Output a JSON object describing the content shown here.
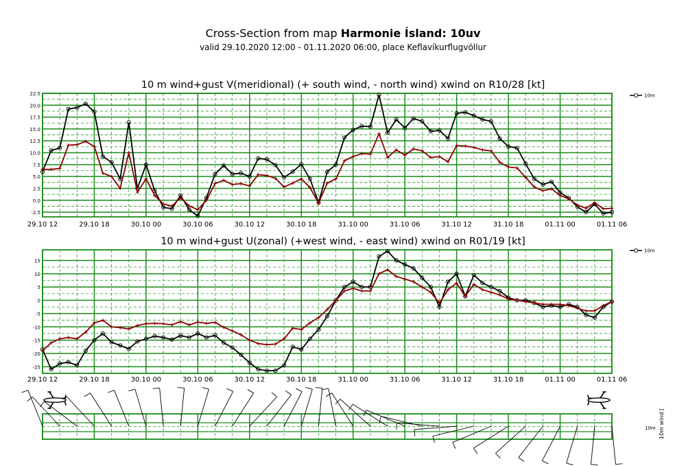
{
  "header": {
    "title_prefix": "Cross-Section from map ",
    "title_bold": "Harmonie Ísland: 10uv",
    "subtitle": "valid 29.10.2020 12:00 - 01.11.2020 06:00, place Keflavíkurflugvöllur"
  },
  "x_tick_labels": [
    "29.10 12",
    "29.10 18",
    "30.10 00",
    "30.10 06",
    "30.10 12",
    "30.10 18",
    "31.10 00",
    "31.10 06",
    "31.10 12",
    "31.10 18",
    "01.11 00",
    "01.11 06"
  ],
  "legend_label": "10m",
  "colors": {
    "wind": "#000000",
    "gust": "#8b0000",
    "grid": "#1a8c1a",
    "grid_dash": "#2e9b2e"
  },
  "chart_data": [
    {
      "type": "line",
      "title": "10 m wind+gust V(meridional) (+ south wind, - north wind) xwind on R10/28 [kt]",
      "x_unit": "hours from 29.10.2020 12:00",
      "x": [
        0,
        1,
        2,
        3,
        4,
        5,
        6,
        7,
        8,
        9,
        10,
        11,
        12,
        13,
        14,
        15,
        16,
        17,
        18,
        19,
        20,
        21,
        22,
        23,
        24,
        25,
        26,
        27,
        28,
        29,
        30,
        31,
        32,
        33,
        34,
        35,
        36,
        37,
        38,
        39,
        40,
        41,
        42,
        43,
        44,
        45,
        46,
        47,
        48,
        49,
        50,
        51,
        52,
        53,
        54,
        55,
        56,
        57,
        58,
        59,
        60,
        61,
        62,
        63,
        64,
        65,
        66
      ],
      "ylim": [
        -3.5,
        22.5
      ],
      "yticks": [
        -2.5,
        0.0,
        2.5,
        5.0,
        7.5,
        10.0,
        12.5,
        15.0,
        17.5,
        20.0,
        22.5
      ],
      "ytick_labels": [
        "-2.5",
        "0.0",
        "2.5",
        "5.0",
        "7.5",
        "10.0",
        "12.5",
        "15.0",
        "17.5",
        "20.0",
        "22.5"
      ],
      "series": [
        {
          "name": "10m",
          "role": "wind",
          "values": [
            6.0,
            10.5,
            11.0,
            19.2,
            19.5,
            20.3,
            18.6,
            9.2,
            8.0,
            4.5,
            16.4,
            2.5,
            7.5,
            2.0,
            -1.5,
            -1.8,
            1.0,
            -2.0,
            -3.3,
            0.5,
            5.5,
            7.3,
            5.5,
            5.7,
            5.0,
            8.8,
            8.6,
            7.4,
            4.8,
            6.0,
            7.6,
            4.5,
            -0.5,
            6.0,
            7.5,
            13.2,
            14.8,
            15.6,
            15.5,
            22.2,
            14.2,
            17.0,
            15.2,
            17.2,
            16.6,
            14.5,
            14.7,
            13.0,
            18.3,
            18.5,
            17.8,
            17.0,
            16.6,
            13.0,
            11.3,
            11.0,
            7.7,
            4.5,
            3.3,
            3.9,
            1.6,
            0.5,
            -1.4,
            -2.5,
            -0.8,
            -2.8,
            -2.5
          ]
        },
        {
          "name": "",
          "role": "gust",
          "values": [
            6.5,
            6.5,
            6.7,
            11.6,
            11.7,
            12.4,
            11.3,
            5.7,
            5.0,
            2.5,
            10.0,
            1.7,
            4.5,
            1.0,
            -0.8,
            -1.2,
            0.5,
            -1.2,
            -2.0,
            0.0,
            3.5,
            4.2,
            3.3,
            3.5,
            3.0,
            5.4,
            5.2,
            4.6,
            2.8,
            3.6,
            4.5,
            2.7,
            -0.6,
            3.6,
            4.5,
            8.3,
            9.2,
            9.8,
            9.7,
            14.0,
            9.0,
            10.6,
            9.5,
            10.8,
            10.4,
            9.0,
            9.2,
            8.1,
            11.5,
            11.4,
            11.1,
            10.6,
            10.4,
            8.0,
            7.0,
            6.8,
            4.8,
            2.8,
            2.0,
            2.4,
            1.0,
            0.3,
            -1.0,
            -1.7,
            -0.5,
            -1.8,
            -1.7
          ]
        }
      ]
    },
    {
      "type": "line",
      "title": "10 m wind+gust U(zonal) (+west wind, - east wind) xwind on R01/19 [kt]",
      "x_unit": "hours from 29.10.2020 12:00",
      "x": [
        0,
        1,
        2,
        3,
        4,
        5,
        6,
        7,
        8,
        9,
        10,
        11,
        12,
        13,
        14,
        15,
        16,
        17,
        18,
        19,
        20,
        21,
        22,
        23,
        24,
        25,
        26,
        27,
        28,
        29,
        30,
        31,
        32,
        33,
        34,
        35,
        36,
        37,
        38,
        39,
        40,
        41,
        42,
        43,
        44,
        45,
        46,
        47,
        48,
        49,
        50,
        51,
        52,
        53,
        54,
        55,
        56,
        57,
        58,
        59,
        60,
        61,
        62,
        63,
        64,
        65,
        66
      ],
      "ylim": [
        -27.5,
        19
      ],
      "yticks": [
        -25,
        -20,
        -15,
        -10,
        -5,
        0,
        5,
        10,
        15
      ],
      "ytick_labels": [
        "-25",
        "-20",
        "-15",
        "-10",
        "-5",
        "0",
        "5",
        "10",
        "15"
      ],
      "series": [
        {
          "name": "10m",
          "role": "wind",
          "values": [
            -18.5,
            -26.0,
            -23.8,
            -23.3,
            -24.5,
            -19.0,
            -15.0,
            -12.5,
            -15.8,
            -17.0,
            -18.3,
            -15.5,
            -14.5,
            -13.5,
            -14.0,
            -14.8,
            -13.3,
            -14.0,
            -12.5,
            -14.0,
            -13.2,
            -16.0,
            -17.8,
            -20.5,
            -23.5,
            -26.0,
            -26.5,
            -26.5,
            -24.5,
            -17.5,
            -18.5,
            -14.5,
            -11.0,
            -6.0,
            0.0,
            5.0,
            7.0,
            5.0,
            5.0,
            16.5,
            18.5,
            15.0,
            13.5,
            12.0,
            8.5,
            5.0,
            -2.5,
            7.0,
            10.0,
            1.5,
            9.5,
            6.5,
            5.0,
            3.5,
            1.0,
            0.0,
            0.0,
            -1.0,
            -2.5,
            -2.0,
            -2.5,
            -1.5,
            -2.5,
            -5.5,
            -6.5,
            -2.5,
            -0.5
          ]
        },
        {
          "name": "",
          "role": "gust",
          "values": [
            -19.0,
            -16.0,
            -14.5,
            -14.0,
            -14.5,
            -12.0,
            -8.5,
            -7.5,
            -10.0,
            -10.3,
            -10.8,
            -9.5,
            -8.8,
            -8.7,
            -8.8,
            -9.3,
            -8.0,
            -9.3,
            -8.2,
            -8.7,
            -8.3,
            -10.2,
            -11.5,
            -13.0,
            -15.0,
            -16.3,
            -16.7,
            -16.5,
            -14.5,
            -10.5,
            -11.0,
            -8.5,
            -6.5,
            -3.5,
            0.0,
            3.5,
            4.5,
            3.5,
            3.5,
            10.0,
            11.5,
            9.0,
            8.0,
            7.0,
            5.0,
            3.0,
            -1.0,
            4.0,
            6.5,
            1.5,
            6.0,
            4.0,
            3.0,
            2.0,
            0.5,
            0.0,
            -0.5,
            -1.0,
            -1.5,
            -1.5,
            -1.5,
            -2.0,
            -3.0,
            -4.0,
            -4.0,
            -2.0,
            -0.5
          ]
        }
      ]
    }
  ],
  "wind_row": {
    "legend_label_1": "10m",
    "legend_label_2": "10m wind [",
    "barb_directions_deg": [
      200,
      210,
      220,
      225,
      230,
      225,
      220,
      215,
      210,
      205,
      200,
      200,
      195,
      190,
      185,
      180,
      175,
      170,
      165,
      160,
      155,
      150,
      150,
      145,
      140,
      140,
      145,
      150,
      155,
      160,
      165,
      170,
      175,
      180,
      190,
      200,
      210,
      220,
      225,
      230,
      235,
      240,
      245,
      250,
      255,
      260,
      265,
      270,
      275,
      280,
      285,
      290,
      295,
      300,
      305,
      310,
      315,
      320,
      325,
      330,
      335,
      340,
      345,
      350,
      355,
      0,
      5
    ],
    "runway_icons": [
      "airplane-left-icon",
      "airplane-right-icon"
    ]
  }
}
